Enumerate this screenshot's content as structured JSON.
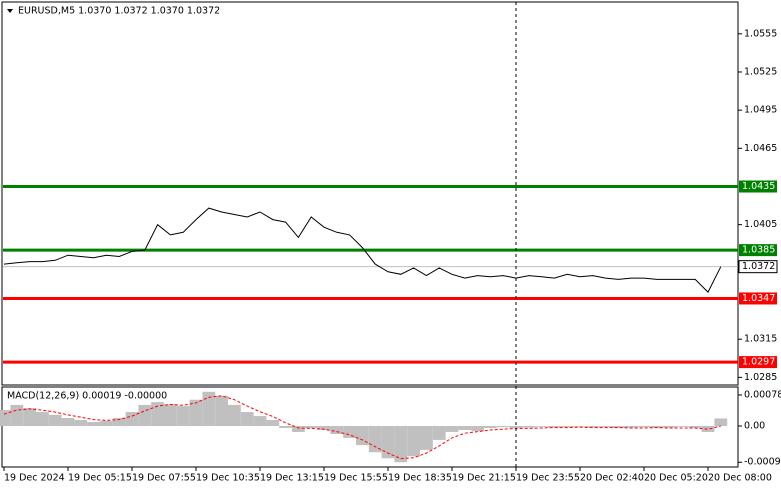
{
  "chart_data": [
    {
      "type": "line",
      "title": "EURUSD,M5  1.0370 1.0372 1.0370 1.0372",
      "categories": [
        "19 Dec 2024",
        null,
        null,
        null,
        null,
        "19 Dec 05:15",
        null,
        null,
        null,
        null,
        "19 Dec 07:55",
        null,
        null,
        null,
        null,
        "19 Dec 10:35",
        null,
        null,
        null,
        null,
        "19 Dec 13:15",
        null,
        null,
        null,
        null,
        "19 Dec 15:55",
        null,
        null,
        null,
        null,
        "19 Dec 18:35",
        null,
        null,
        null,
        null,
        "19 Dec 21:15",
        null,
        null,
        null,
        null,
        "19 Dec 23:55",
        null,
        null,
        null,
        null,
        "20 Dec 02:40",
        null,
        null,
        null,
        null,
        "20 Dec 05:20",
        null,
        null,
        null,
        null,
        "20 Dec 08:00",
        null
      ],
      "series": [
        {
          "color": "#000000",
          "values": [
            1.0374,
            1.0375,
            1.0376,
            1.0376,
            1.0377,
            1.0381,
            1.038,
            1.0379,
            1.0381,
            1.038,
            1.0384,
            1.0385,
            1.0405,
            1.0397,
            1.0399,
            1.0409,
            1.0418,
            1.0415,
            1.0413,
            1.0411,
            1.0415,
            1.0409,
            1.0407,
            1.0395,
            1.0411,
            1.0403,
            1.0399,
            1.0397,
            1.0387,
            1.0374,
            1.0368,
            1.0366,
            1.0371,
            1.0365,
            1.0371,
            1.0366,
            1.0363,
            1.0365,
            1.0364,
            1.0365,
            1.0363,
            1.0365,
            1.0364,
            1.0363,
            1.0366,
            1.0364,
            1.0365,
            1.0363,
            1.0362,
            1.0363,
            1.0363,
            1.0362,
            1.0362,
            1.0362,
            1.0362,
            1.0352,
            1.0372
          ]
        }
      ],
      "ylim": [
        1.0279,
        1.058
      ],
      "yticks": [
        1.0555,
        1.0525,
        1.0495,
        1.0465,
        1.0405,
        1.0315,
        1.0285
      ],
      "levels": [
        {
          "value": 1.0435,
          "color": "#008000"
        },
        {
          "value": 1.0385,
          "color": "#008000"
        },
        {
          "value": 1.0347,
          "color": "#ff0000"
        },
        {
          "value": 1.0297,
          "color": "#ff0000"
        }
      ],
      "last_price": 1.0372
    },
    {
      "type": "bar",
      "title": "MACD(12,26,9) 0.00019 -0.00000",
      "series": [
        {
          "type": "bar",
          "color": "#c0c0c0",
          "values": [
            0.0004,
            0.00053,
            0.00045,
            0.00035,
            0.00028,
            0.0002,
            0.00015,
            0.0001,
            0.00013,
            0.0002,
            0.00035,
            0.00053,
            0.0006,
            0.00055,
            0.0005,
            0.00066,
            0.00086,
            0.00076,
            0.00053,
            0.00035,
            0.00025,
            0.00015,
            -5e-05,
            -0.00015,
            -5e-05,
            -0.0001,
            -0.0002,
            -0.0003,
            -0.00048,
            -0.00066,
            -0.00081,
            -0.00091,
            -0.00076,
            -0.0006,
            -0.00035,
            -0.00015,
            -0.0001,
            -0.00013,
            -5e-05,
            -3e-05,
            -5e-05,
            -4e-05,
            -2e-05,
            -4e-05,
            -3e-05,
            -2e-05,
            -4e-05,
            -3e-05,
            -5e-05,
            -4e-05,
            -3e-05,
            -5e-05,
            -4e-05,
            -2e-05,
            -5e-05,
            -0.00015,
            0.00019
          ]
        },
        {
          "type": "line",
          "color": "#ff0000",
          "values": [
            0.0003,
            0.0004,
            0.00043,
            0.0004,
            0.00035,
            0.00028,
            0.00022,
            0.00016,
            0.00014,
            0.00016,
            0.00025,
            0.00038,
            0.0005,
            0.00054,
            0.00052,
            0.00058,
            0.00072,
            0.00076,
            0.00066,
            0.0005,
            0.00036,
            0.00024,
            8e-05,
            -5e-05,
            -6e-05,
            -8e-05,
            -0.00014,
            -0.00022,
            -0.00035,
            -0.00052,
            -0.00068,
            -0.00082,
            -0.0008,
            -0.00068,
            -0.0005,
            -0.0003,
            -0.00018,
            -0.00014,
            -0.0001,
            -8e-05,
            -6e-05,
            -6e-05,
            -5e-05,
            -4e-05,
            -4e-05,
            -3e-05,
            -4e-05,
            -4e-05,
            -4e-05,
            -5e-05,
            -5e-05,
            -4e-05,
            -5e-05,
            -5e-05,
            -5e-05,
            -8e-05,
            0.0
          ]
        }
      ],
      "ylim": [
        -0.00103,
        0.00098
      ],
      "yticks": [
        0.00078,
        {
          "value": 0,
          "label": "0.00"
        },
        -0.00091
      ]
    }
  ]
}
